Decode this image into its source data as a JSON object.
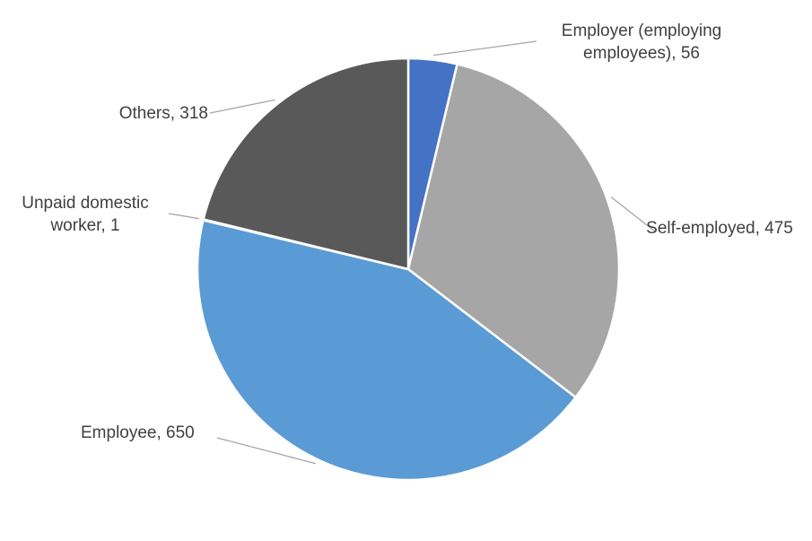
{
  "chart_data": {
    "type": "pie",
    "title": "",
    "total": 1500,
    "categories": [
      "Employer (employing employees)",
      "Self-employed",
      "Employee",
      "Unpaid domestic worker",
      "Others"
    ],
    "values": [
      56,
      475,
      650,
      1,
      318
    ],
    "points": [
      {
        "label": "Employer (employing employees)",
        "value": 56,
        "color": "#4472C4",
        "display": "Employer (employing employees), 56"
      },
      {
        "label": "Self-employed",
        "value": 475,
        "color": "#A6A6A6",
        "display": "Self-employed, 475"
      },
      {
        "label": "Employee",
        "value": 650,
        "color": "#5B9BD5",
        "display": "Employee, 650"
      },
      {
        "label": "Unpaid domestic worker",
        "value": 1,
        "color": "#FFC000",
        "display": "Unpaid domestic worker, 1"
      },
      {
        "label": "Others",
        "value": 318,
        "color": "#595959",
        "display": "Others, 318"
      }
    ],
    "start_angle_deg": 0,
    "direction": "clockwise",
    "legend_position": "none",
    "data_labels": "outside-with-leader-lines",
    "slice_border_color": "#FFFFFF",
    "leader_line_color": "#A6A6A6",
    "label_text_color": "#404040",
    "background_color": "#FFFFFF"
  }
}
